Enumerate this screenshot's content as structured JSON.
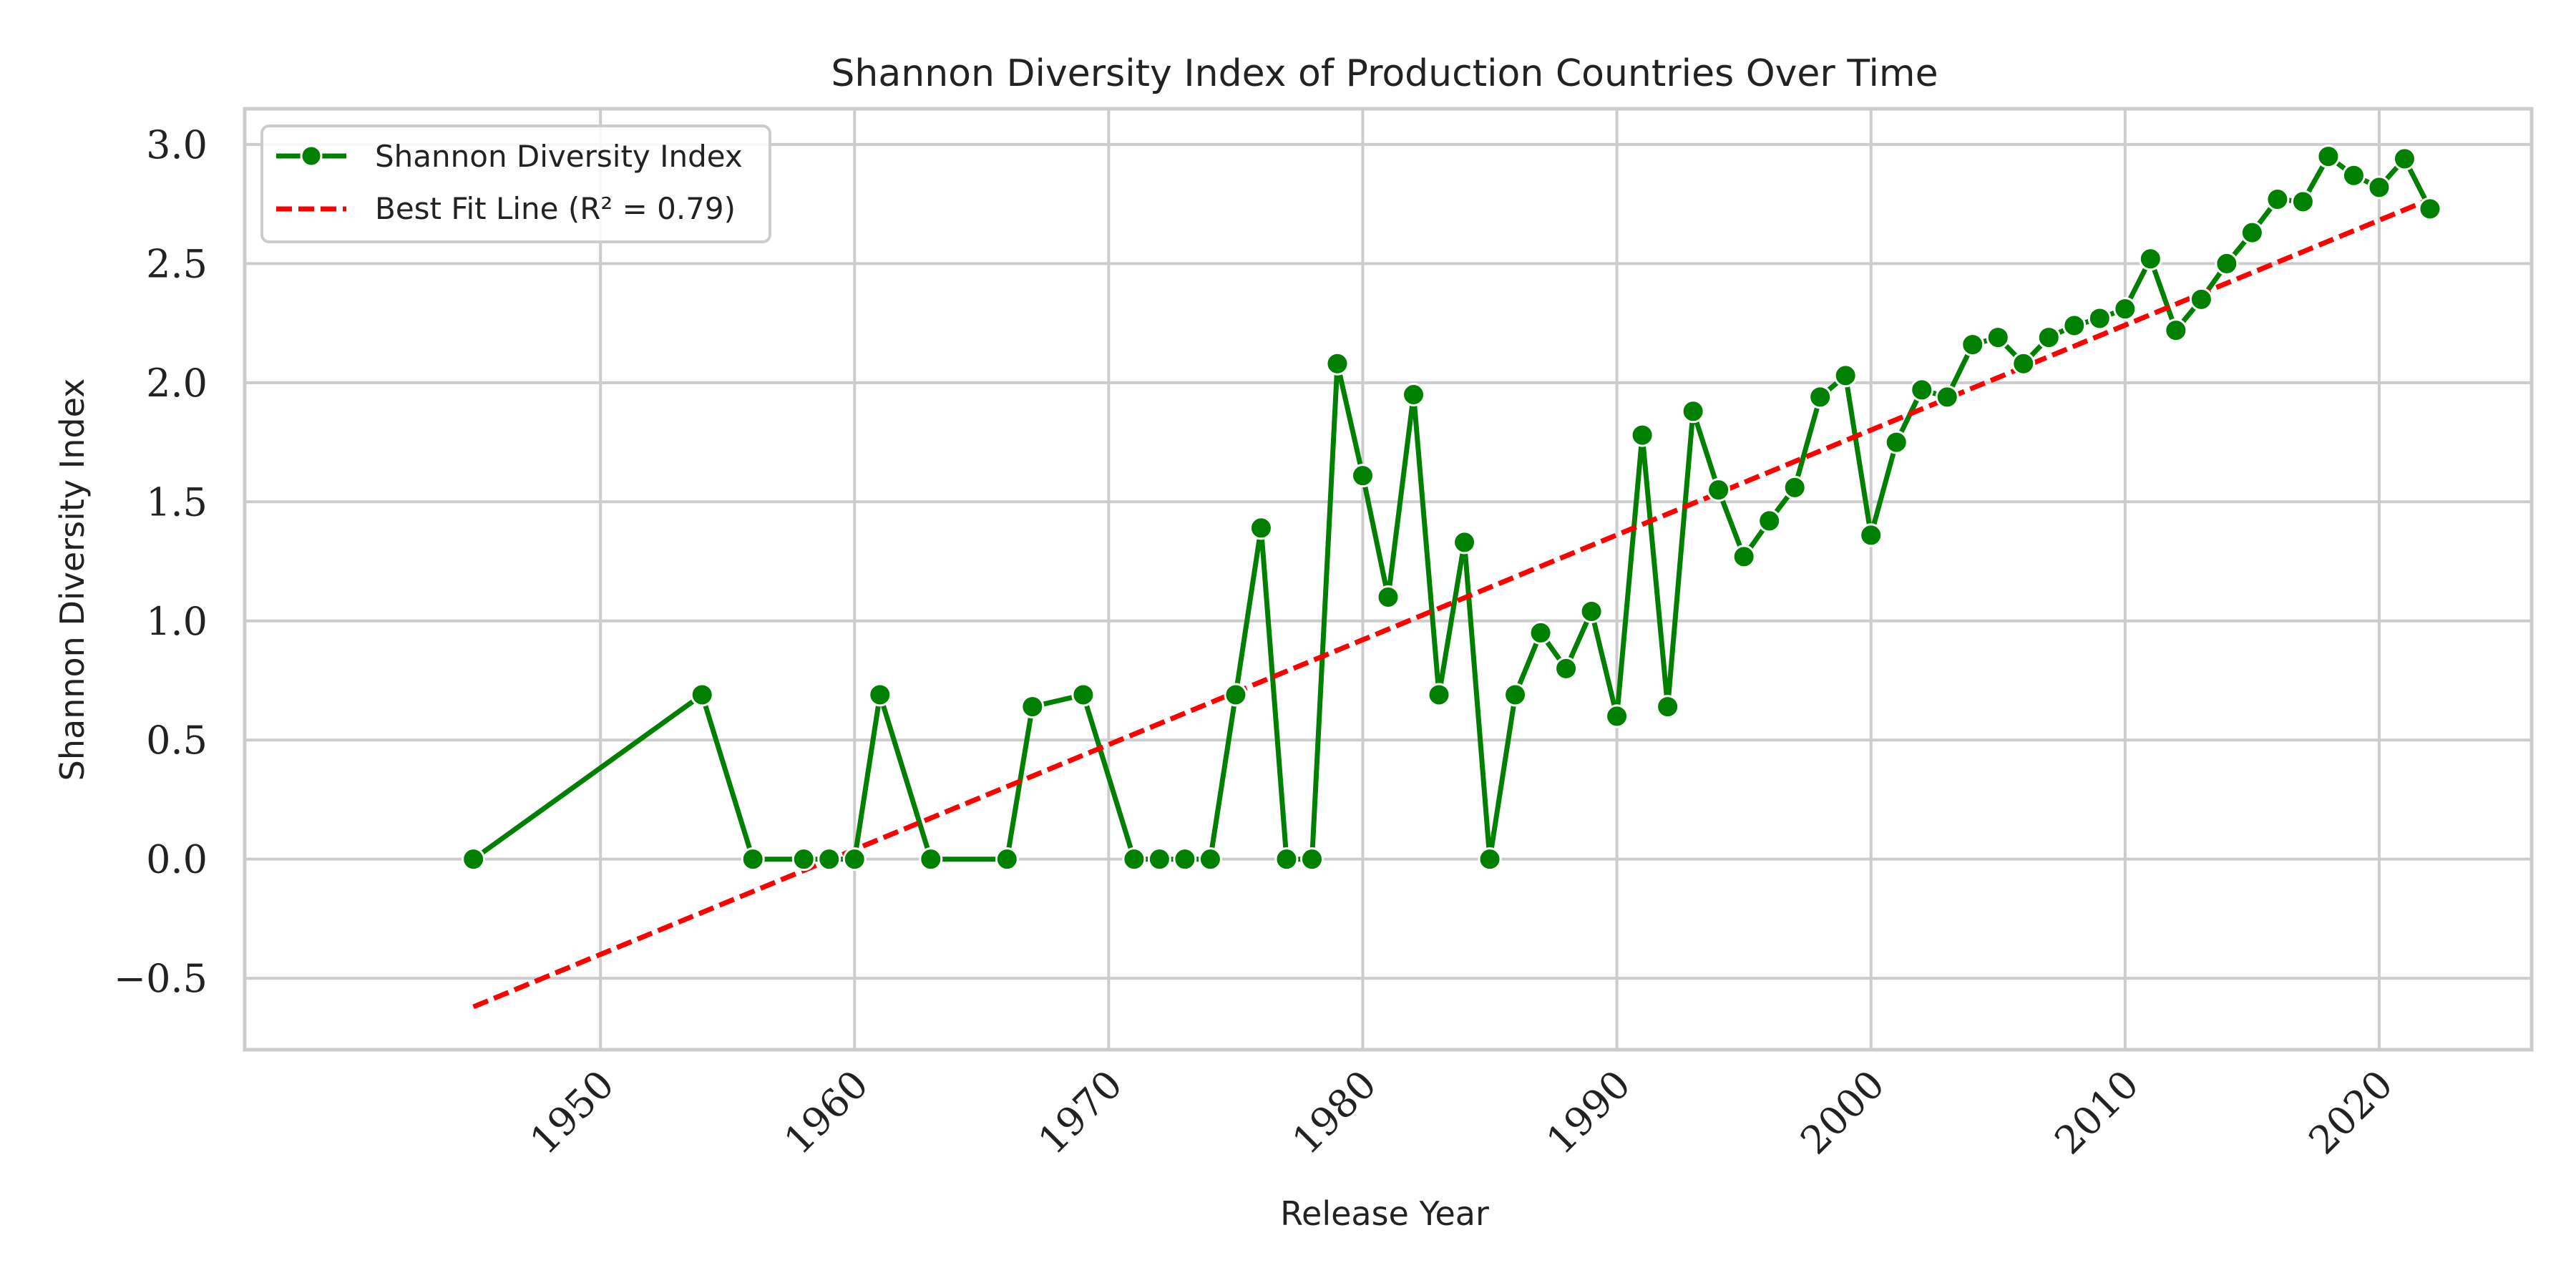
{
  "chart_data": {
    "type": "line",
    "title": "Shannon Diversity Index of Production Countries Over Time",
    "xlabel": "Release Year",
    "ylabel": "Shannon Diversity Index",
    "xlim": [
      1936,
      2026
    ],
    "ylim": [
      -0.8,
      3.15
    ],
    "x_ticks": [
      1950,
      1960,
      1970,
      1980,
      1990,
      2000,
      2010,
      2020
    ],
    "y_ticks": [
      -0.5,
      0.0,
      0.5,
      1.0,
      1.5,
      2.0,
      2.5,
      3.0
    ],
    "y_tick_labels": [
      "−0.5",
      "0.0",
      "0.5",
      "1.0",
      "1.5",
      "2.0",
      "2.5",
      "3.0"
    ],
    "grid": true,
    "legend_position": "top-left",
    "series": [
      {
        "name": "Shannon Diversity Index",
        "kind": "line-with-markers",
        "color": "#008000",
        "x": [
          1945,
          1954,
          1956,
          1958,
          1959,
          1960,
          1961,
          1963,
          1966,
          1967,
          1969,
          1971,
          1972,
          1973,
          1974,
          1975,
          1976,
          1977,
          1978,
          1979,
          1980,
          1981,
          1982,
          1983,
          1984,
          1985,
          1986,
          1987,
          1988,
          1989,
          1990,
          1991,
          1992,
          1993,
          1994,
          1995,
          1996,
          1997,
          1998,
          1999,
          2000,
          2001,
          2002,
          2003,
          2004,
          2005,
          2006,
          2007,
          2008,
          2009,
          2010,
          2011,
          2012,
          2013,
          2014,
          2015,
          2016,
          2017,
          2018,
          2019,
          2020,
          2021,
          2022
        ],
        "y": [
          0.0,
          0.69,
          0.0,
          0.0,
          0.0,
          0.0,
          0.69,
          0.0,
          0.0,
          0.64,
          0.69,
          0.0,
          0.0,
          0.0,
          0.0,
          0.69,
          1.39,
          0.0,
          0.0,
          2.08,
          1.61,
          1.1,
          1.95,
          0.69,
          1.33,
          0.0,
          0.69,
          0.95,
          0.8,
          1.04,
          0.6,
          1.78,
          0.64,
          1.88,
          1.55,
          1.27,
          1.42,
          1.56,
          1.94,
          2.03,
          1.36,
          1.75,
          1.97,
          1.94,
          2.16,
          2.19,
          2.08,
          2.19,
          2.24,
          2.27,
          2.31,
          2.52,
          2.22,
          2.35,
          2.5,
          2.63,
          2.77,
          2.76,
          2.95,
          2.87,
          2.82,
          2.94,
          2.73
        ]
      },
      {
        "name": "Best Fit Line (R² = 0.79)",
        "kind": "dashed-line",
        "color": "#ff0000",
        "x": [
          1945,
          2022
        ],
        "y": [
          -0.62,
          2.77
        ]
      }
    ]
  }
}
